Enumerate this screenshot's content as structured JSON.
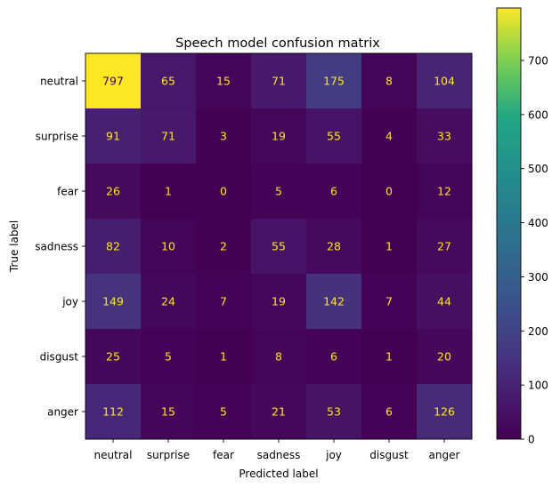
{
  "chart_data": {
    "type": "heatmap",
    "title": "Speech model confusion matrix",
    "xlabel": "Predicted label",
    "ylabel": "True label",
    "x_categories": [
      "neutral",
      "surprise",
      "fear",
      "sadness",
      "joy",
      "disgust",
      "anger"
    ],
    "y_categories": [
      "neutral",
      "surprise",
      "fear",
      "sadness",
      "joy",
      "disgust",
      "anger"
    ],
    "values": [
      [
        797,
        65,
        15,
        71,
        175,
        8,
        104
      ],
      [
        91,
        71,
        3,
        19,
        55,
        4,
        33
      ],
      [
        26,
        1,
        0,
        5,
        6,
        0,
        12
      ],
      [
        82,
        10,
        2,
        55,
        28,
        1,
        27
      ],
      [
        149,
        24,
        7,
        19,
        142,
        7,
        44
      ],
      [
        25,
        5,
        1,
        8,
        6,
        1,
        20
      ],
      [
        112,
        15,
        5,
        21,
        53,
        6,
        126
      ]
    ],
    "colormap": "viridis",
    "value_range": [
      0,
      797
    ],
    "colorbar_ticks": [
      "0",
      "100",
      "200",
      "300",
      "400",
      "500",
      "600",
      "700"
    ],
    "grid": false,
    "colors": {
      "low_text": "#fde725",
      "high_text": "#440154"
    }
  }
}
